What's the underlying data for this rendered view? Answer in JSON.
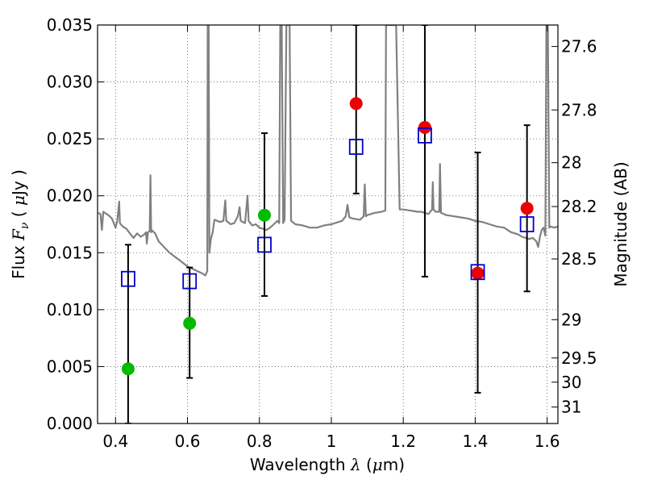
{
  "chart_data": {
    "type": "scatter",
    "xlabel_parts": [
      "Wavelength  ",
      "λ",
      " (",
      "μ",
      "m)"
    ],
    "ylabel_parts": [
      "Flux  ",
      "F",
      "ν",
      "  ( ",
      "μ",
      "Jy )"
    ],
    "y2label": "Magnitude (AB)",
    "xlim": [
      0.35,
      1.63
    ],
    "ylim": [
      0.0,
      0.035
    ],
    "grid": true,
    "x_ticks": [
      {
        "value": 0.4,
        "label": "0.4"
      },
      {
        "value": 0.6,
        "label": "0.6"
      },
      {
        "value": 0.8,
        "label": "0.8"
      },
      {
        "value": 1.0,
        "label": "1"
      },
      {
        "value": 1.2,
        "label": "1.2"
      },
      {
        "value": 1.4,
        "label": "1.4"
      },
      {
        "value": 1.6,
        "label": "1.6"
      }
    ],
    "y_ticks": [
      {
        "value": 0.0,
        "label": "0.000"
      },
      {
        "value": 0.005,
        "label": "0.005"
      },
      {
        "value": 0.01,
        "label": "0.010"
      },
      {
        "value": 0.015,
        "label": "0.015"
      },
      {
        "value": 0.02,
        "label": "0.020"
      },
      {
        "value": 0.025,
        "label": "0.025"
      },
      {
        "value": 0.03,
        "label": "0.030"
      },
      {
        "value": 0.035,
        "label": "0.035"
      }
    ],
    "y2_ticks": [
      {
        "value": 27.6,
        "label": "27.6"
      },
      {
        "value": 27.8,
        "label": "27.8"
      },
      {
        "value": 28.0,
        "label": "28"
      },
      {
        "value": 28.2,
        "label": "28.2"
      },
      {
        "value": 28.5,
        "label": "28.5"
      },
      {
        "value": 29.0,
        "label": "29"
      },
      {
        "value": 29.5,
        "label": "29.5"
      },
      {
        "value": 30.0,
        "label": "30"
      },
      {
        "value": 31.0,
        "label": "31"
      }
    ],
    "colors": {
      "model": "#808080",
      "optical": "#00bb00",
      "nir": "#ee0000",
      "template": "#0000cc",
      "errorbar": "#000000",
      "grid": "#555555"
    },
    "model_spectrum": [
      [
        0.352,
        0.0185
      ],
      [
        0.358,
        0.0184
      ],
      [
        0.362,
        0.017
      ],
      [
        0.366,
        0.0186
      ],
      [
        0.38,
        0.0183
      ],
      [
        0.39,
        0.018
      ],
      [
        0.395,
        0.0176
      ],
      [
        0.4,
        0.0172
      ],
      [
        0.405,
        0.0178
      ],
      [
        0.41,
        0.0195
      ],
      [
        0.412,
        0.0176
      ],
      [
        0.42,
        0.0173
      ],
      [
        0.43,
        0.0171
      ],
      [
        0.44,
        0.0167
      ],
      [
        0.45,
        0.0163
      ],
      [
        0.46,
        0.0167
      ],
      [
        0.47,
        0.0164
      ],
      [
        0.48,
        0.0166
      ],
      [
        0.485,
        0.0168
      ],
      [
        0.487,
        0.0158
      ],
      [
        0.49,
        0.0168
      ],
      [
        0.495,
        0.0169
      ],
      [
        0.497,
        0.0218
      ],
      [
        0.499,
        0.0168
      ],
      [
        0.5,
        0.017
      ],
      [
        0.51,
        0.0167
      ],
      [
        0.52,
        0.016
      ],
      [
        0.55,
        0.015
      ],
      [
        0.58,
        0.0143
      ],
      [
        0.6,
        0.0138
      ],
      [
        0.62,
        0.0135
      ],
      [
        0.64,
        0.0132
      ],
      [
        0.65,
        0.013
      ],
      [
        0.655,
        0.0134
      ],
      [
        0.6563,
        0.035
      ],
      [
        0.659,
        0.035
      ],
      [
        0.661,
        0.015
      ],
      [
        0.665,
        0.0162
      ],
      [
        0.67,
        0.0168
      ],
      [
        0.673,
        0.0175
      ],
      [
        0.675,
        0.0179
      ],
      [
        0.69,
        0.0177
      ],
      [
        0.7,
        0.0178
      ],
      [
        0.705,
        0.0196
      ],
      [
        0.708,
        0.0178
      ],
      [
        0.72,
        0.0175
      ],
      [
        0.73,
        0.0176
      ],
      [
        0.74,
        0.0182
      ],
      [
        0.745,
        0.019
      ],
      [
        0.748,
        0.0178
      ],
      [
        0.76,
        0.0176
      ],
      [
        0.767,
        0.02
      ],
      [
        0.77,
        0.0178
      ],
      [
        0.78,
        0.0174
      ],
      [
        0.79,
        0.0175
      ],
      [
        0.8,
        0.0172
      ],
      [
        0.82,
        0.017
      ],
      [
        0.83,
        0.0172
      ],
      [
        0.84,
        0.0175
      ],
      [
        0.85,
        0.0178
      ],
      [
        0.855,
        0.0176
      ],
      [
        0.858,
        0.035
      ],
      [
        0.862,
        0.035
      ],
      [
        0.866,
        0.0176
      ],
      [
        0.87,
        0.0179
      ],
      [
        0.875,
        0.035
      ],
      [
        0.88,
        0.035
      ],
      [
        0.884,
        0.035
      ],
      [
        0.888,
        0.0178
      ],
      [
        0.9,
        0.0175
      ],
      [
        0.92,
        0.0174
      ],
      [
        0.94,
        0.0172
      ],
      [
        0.96,
        0.0172
      ],
      [
        0.98,
        0.0174
      ],
      [
        1.0,
        0.0175
      ],
      [
        1.02,
        0.0177
      ],
      [
        1.03,
        0.0178
      ],
      [
        1.04,
        0.0182
      ],
      [
        1.045,
        0.0192
      ],
      [
        1.05,
        0.0181
      ],
      [
        1.06,
        0.018
      ],
      [
        1.08,
        0.0179
      ],
      [
        1.09,
        0.0182
      ],
      [
        1.093,
        0.021
      ],
      [
        1.096,
        0.0182
      ],
      [
        1.1,
        0.0183
      ],
      [
        1.12,
        0.0185
      ],
      [
        1.14,
        0.0186
      ],
      [
        1.15,
        0.0187
      ],
      [
        1.152,
        0.035
      ],
      [
        1.18,
        0.035
      ],
      [
        1.19,
        0.0188
      ],
      [
        1.2,
        0.0188
      ],
      [
        1.22,
        0.0187
      ],
      [
        1.24,
        0.0186
      ],
      [
        1.25,
        0.0186
      ],
      [
        1.26,
        0.0185
      ],
      [
        1.27,
        0.0184
      ],
      [
        1.28,
        0.0188
      ],
      [
        1.282,
        0.0212
      ],
      [
        1.284,
        0.0188
      ],
      [
        1.29,
        0.0186
      ],
      [
        1.3,
        0.0186
      ],
      [
        1.302,
        0.0228
      ],
      [
        1.305,
        0.0185
      ],
      [
        1.32,
        0.0183
      ],
      [
        1.34,
        0.0182
      ],
      [
        1.36,
        0.0181
      ],
      [
        1.38,
        0.018
      ],
      [
        1.4,
        0.0178
      ],
      [
        1.42,
        0.0177
      ],
      [
        1.44,
        0.0175
      ],
      [
        1.46,
        0.0173
      ],
      [
        1.48,
        0.0172
      ],
      [
        1.5,
        0.0168
      ],
      [
        1.52,
        0.0166
      ],
      [
        1.53,
        0.0164
      ],
      [
        1.54,
        0.0163
      ],
      [
        1.55,
        0.0162
      ],
      [
        1.56,
        0.0163
      ],
      [
        1.57,
        0.016
      ],
      [
        1.575,
        0.0155
      ],
      [
        1.58,
        0.0164
      ],
      [
        1.585,
        0.017
      ],
      [
        1.59,
        0.0172
      ],
      [
        1.595,
        0.0165
      ],
      [
        1.598,
        0.035
      ],
      [
        1.602,
        0.035
      ],
      [
        1.606,
        0.0172
      ],
      [
        1.61,
        0.0173
      ],
      [
        1.62,
        0.0172
      ],
      [
        1.63,
        0.0173
      ]
    ],
    "optical_points": [
      {
        "x": 0.435,
        "y": 0.0048
      },
      {
        "x": 0.606,
        "y": 0.0088
      },
      {
        "x": 0.814,
        "y": 0.0183
      }
    ],
    "nir_points": [
      {
        "x": 1.069,
        "y": 0.0281,
        "ylo": 0.0202,
        "yhi": 0.035
      },
      {
        "x": 1.26,
        "y": 0.026,
        "ylo": 0.0129,
        "yhi": 0.035
      },
      {
        "x": 1.407,
        "y": 0.0132,
        "ylo": 0.0027,
        "yhi": 0.0238
      },
      {
        "x": 1.544,
        "y": 0.0189,
        "ylo": 0.0116,
        "yhi": 0.0262
      }
    ],
    "template_points": [
      {
        "x": 0.435,
        "y": 0.0127,
        "ylo": 0.0,
        "yhi": 0.0157
      },
      {
        "x": 0.606,
        "y": 0.0125,
        "ylo": 0.004,
        "yhi": 0.0137
      },
      {
        "x": 0.814,
        "y": 0.0157,
        "ylo": 0.0112,
        "yhi": 0.0255
      },
      {
        "x": 1.069,
        "y": 0.0243
      },
      {
        "x": 1.26,
        "y": 0.0253
      },
      {
        "x": 1.407,
        "y": 0.0133
      },
      {
        "x": 1.544,
        "y": 0.0175
      }
    ]
  }
}
